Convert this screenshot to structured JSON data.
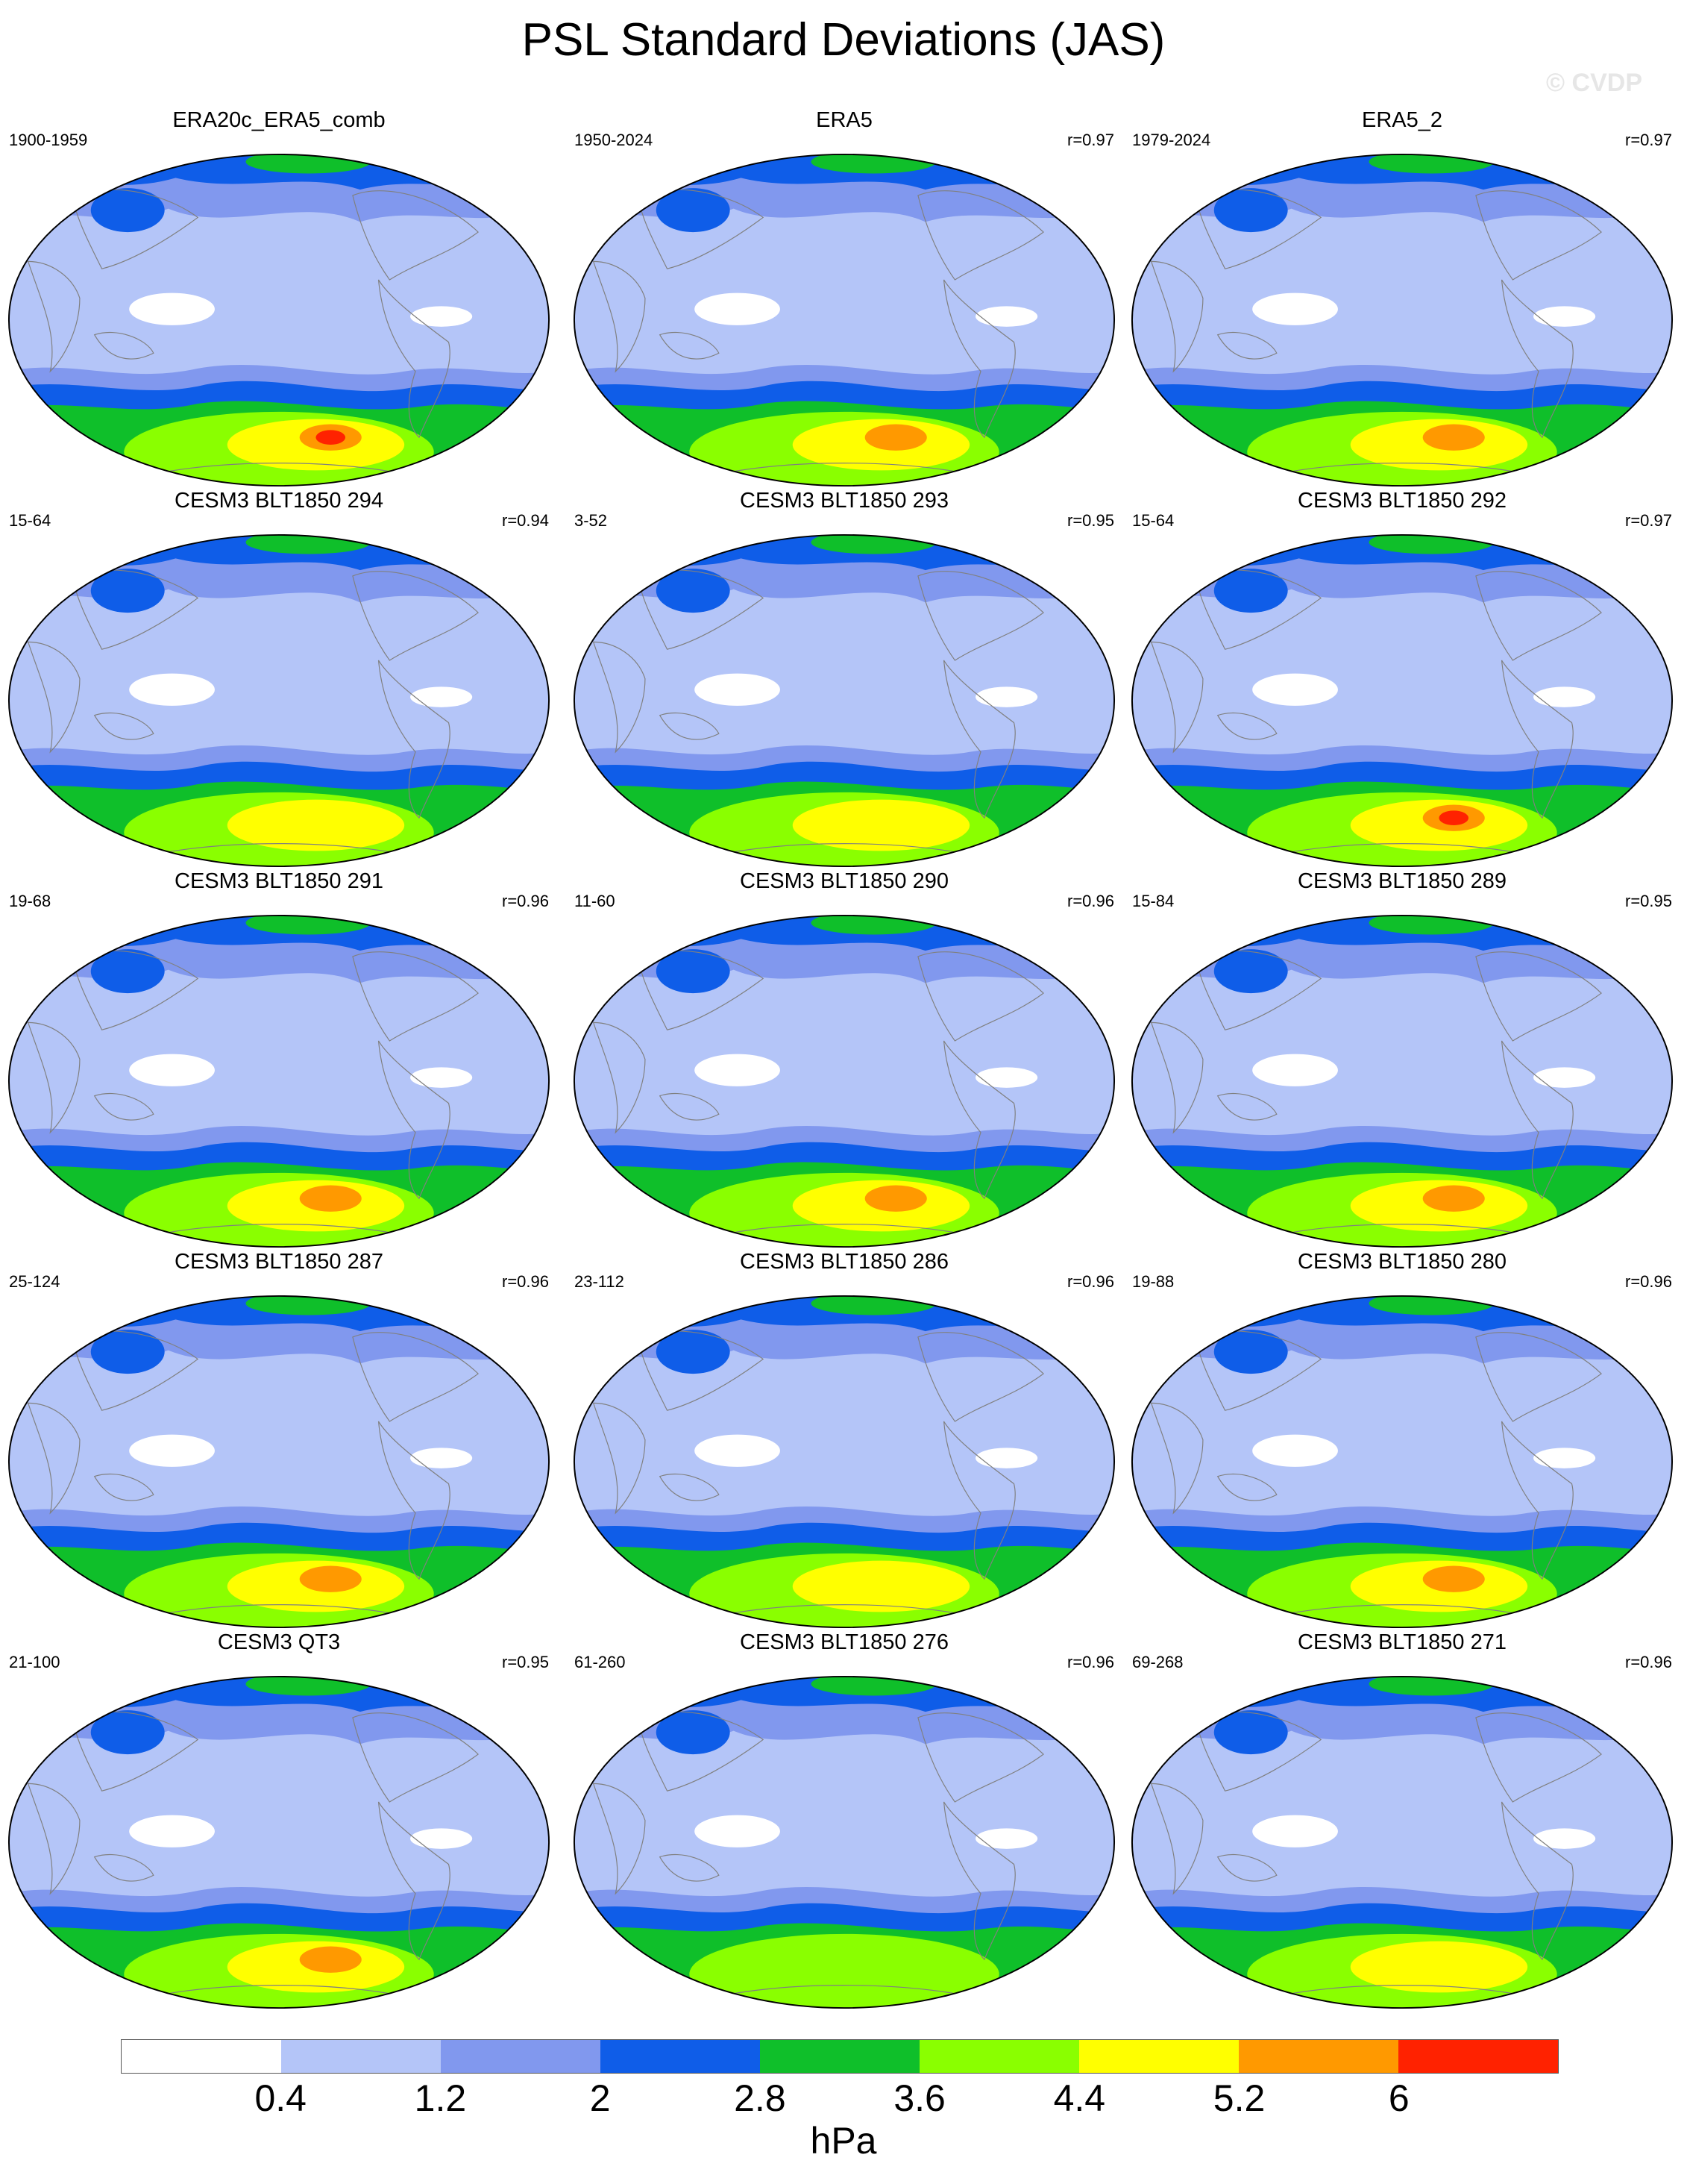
{
  "title": "PSL Standard Deviations (JAS)",
  "watermark": "© CVDP",
  "colors": {
    "levels": [
      "#ffffff",
      "#b4c5f8",
      "#8198ee",
      "#0f5de8",
      "#0fbf2a",
      "#8aff00",
      "#ffff00",
      "#ff9900",
      "#ff2200"
    ],
    "coast": "#808080"
  },
  "panels": [
    {
      "title": "ERA20c_ERA5_comb",
      "period": "1900-1959",
      "r": "",
      "max": 6
    },
    {
      "title": "ERA5",
      "period": "1950-2024",
      "r": "r=0.97",
      "max": 5
    },
    {
      "title": "ERA5_2",
      "period": "1979-2024",
      "r": "r=0.97",
      "max": 5
    },
    {
      "title": "CESM3 BLT1850 294",
      "period": "15-64",
      "r": "r=0.94",
      "max": 4
    },
    {
      "title": "CESM3 BLT1850 293",
      "period": "3-52",
      "r": "r=0.95",
      "max": 4
    },
    {
      "title": "CESM3 BLT1850 292",
      "period": "15-64",
      "r": "r=0.97",
      "max": 6
    },
    {
      "title": "CESM3 BLT1850 291",
      "period": "19-68",
      "r": "r=0.96",
      "max": 5
    },
    {
      "title": "CESM3 BLT1850 290",
      "period": "11-60",
      "r": "r=0.96",
      "max": 5
    },
    {
      "title": "CESM3 BLT1850 289",
      "period": "15-84",
      "r": "r=0.95",
      "max": 5
    },
    {
      "title": "CESM3 BLT1850 287",
      "period": "25-124",
      "r": "r=0.96",
      "max": 5
    },
    {
      "title": "CESM3 BLT1850 286",
      "period": "23-112",
      "r": "r=0.96",
      "max": 4
    },
    {
      "title": "CESM3 BLT1850 280",
      "period": "19-88",
      "r": "r=0.96",
      "max": 5
    },
    {
      "title": "CESM3 QT3",
      "period": "21-100",
      "r": "r=0.95",
      "max": 5
    },
    {
      "title": "CESM3 BLT1850 276",
      "period": "61-260",
      "r": "r=0.96",
      "max": 3
    },
    {
      "title": "CESM3 BLT1850 271",
      "period": "69-268",
      "r": "r=0.96",
      "max": 4
    }
  ],
  "colorbar": {
    "labels": [
      "0.4",
      "1.2",
      "2",
      "2.8",
      "3.6",
      "4.4",
      "5.2",
      "6"
    ],
    "units": "hPa"
  }
}
